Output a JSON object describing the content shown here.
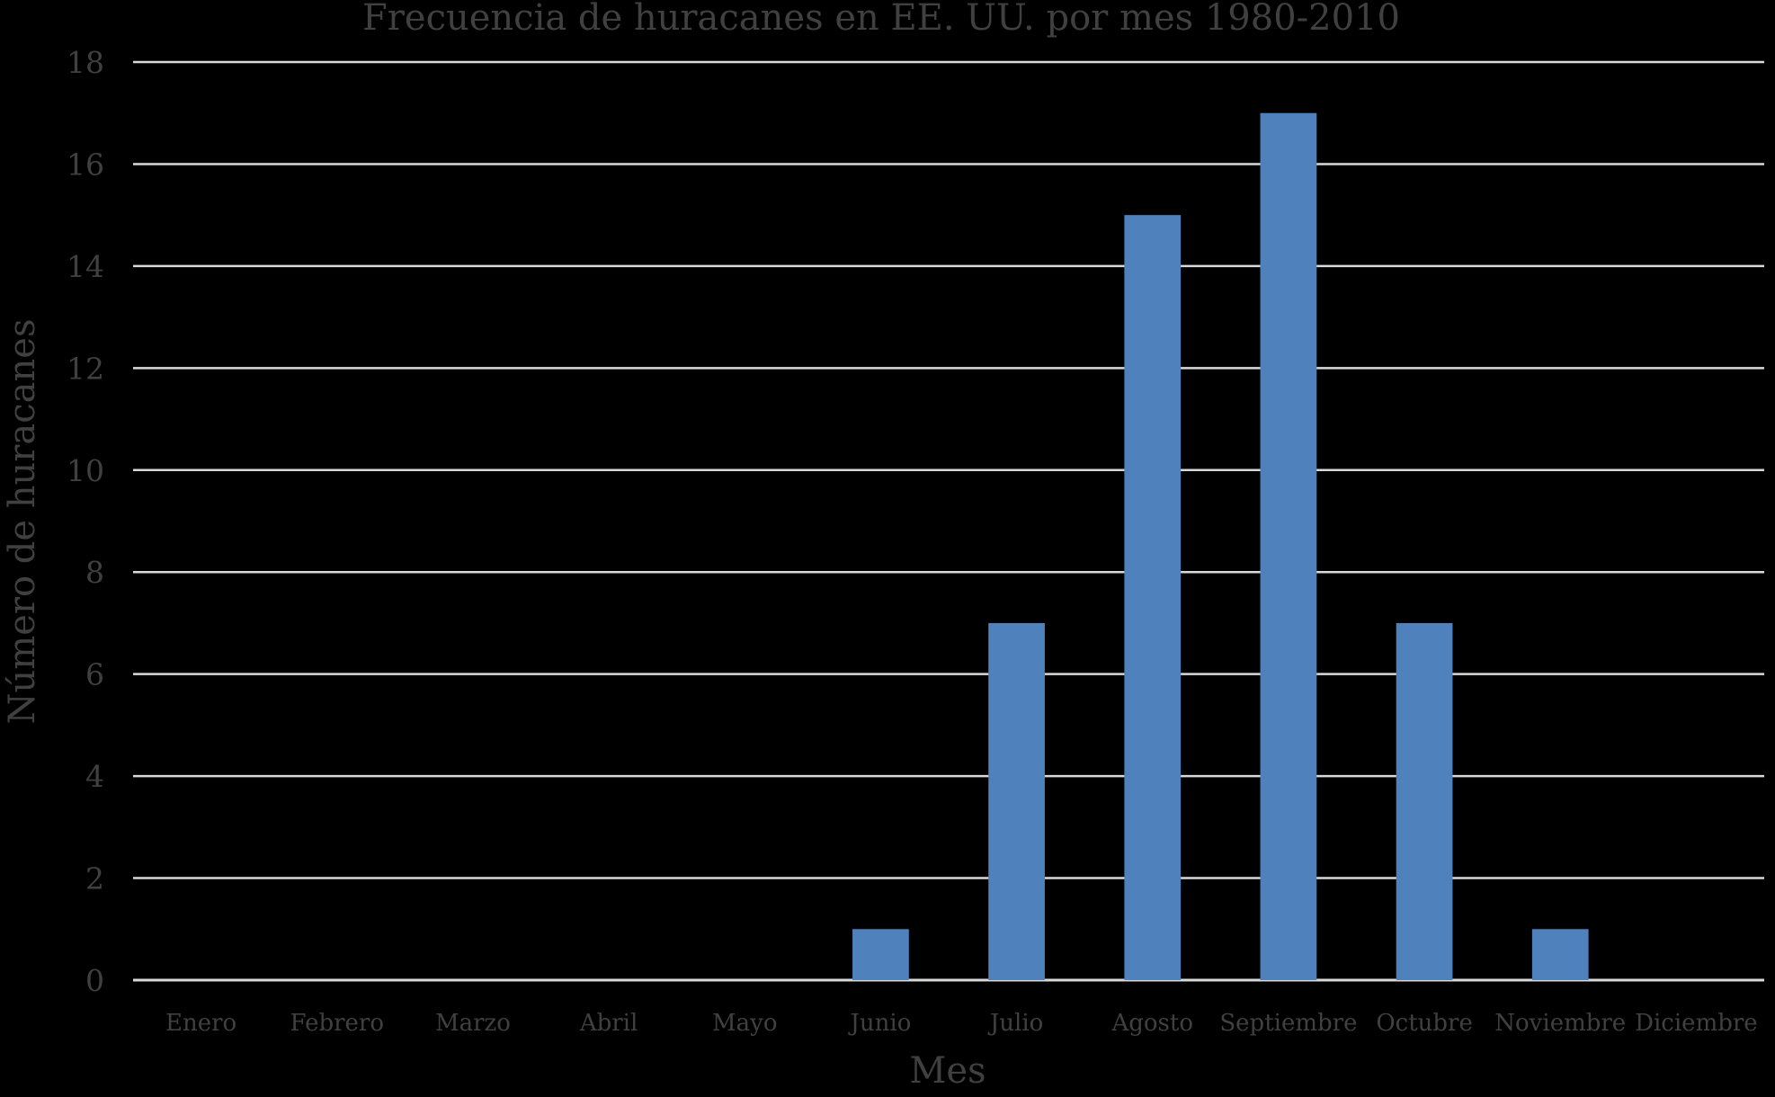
{
  "chart_data": {
    "type": "bar",
    "title": "Frecuencia de huracanes en EE. UU. por mes 1980-2010",
    "xlabel": "Mes",
    "ylabel": "Número de huracanes",
    "categories": [
      "Enero",
      "Febrero",
      "Marzo",
      "Abril",
      "Mayo",
      "Junio",
      "Julio",
      "Agosto",
      "Septiembre",
      "Octubre",
      "Noviembre",
      "Diciembre"
    ],
    "values": [
      0,
      0,
      0,
      0,
      0,
      1,
      7,
      15,
      17,
      7,
      1,
      0
    ],
    "ylim": [
      0,
      18
    ],
    "yticks": [
      0,
      2,
      4,
      6,
      8,
      10,
      12,
      14,
      16,
      18
    ],
    "grid": true,
    "legend": "none",
    "colors": {
      "background": "#000000",
      "bar": "#4f81bd",
      "grid": "#d9d9d9",
      "text": "#404040"
    }
  }
}
